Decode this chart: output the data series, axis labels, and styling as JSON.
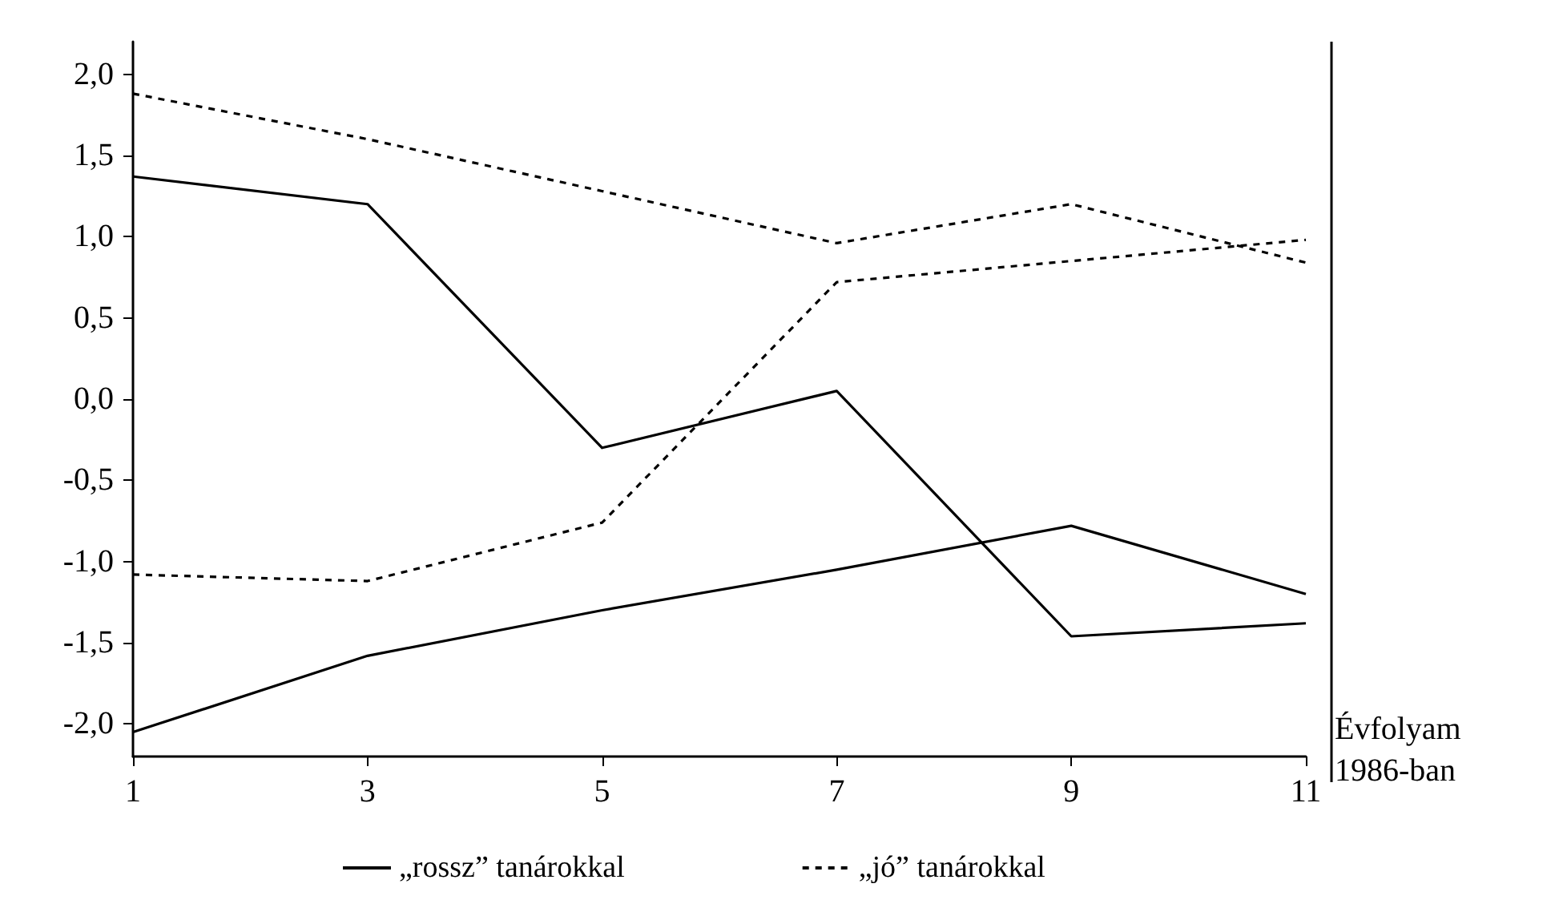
{
  "chart_data": {
    "type": "line",
    "xlabel": "Évfolyam 1986-ban",
    "x": [
      1,
      3,
      5,
      7,
      9,
      11
    ],
    "xlim": [
      1,
      11
    ],
    "xticks": [
      1,
      3,
      5,
      7,
      9,
      11
    ],
    "ylim": [
      -2.2,
      2.2
    ],
    "yticks": [
      {
        "value": -2,
        "label": "-2,0"
      },
      {
        "value": -1.5,
        "label": "-1,5"
      },
      {
        "value": -1,
        "label": "-1,0"
      },
      {
        "value": -0.5,
        "label": "-0,5"
      },
      {
        "value": 0,
        "label": "0,0"
      },
      {
        "value": 0.5,
        "label": "0,5"
      },
      {
        "value": 1,
        "label": "1,0"
      },
      {
        "value": 1.5,
        "label": "1,5"
      },
      {
        "value": 2,
        "label": "2,0"
      }
    ],
    "grid": false,
    "legend": "bottom",
    "marker": "none",
    "series": [
      {
        "name": "„rossz” tanárokkal",
        "color": "#000000",
        "line_style": "solid",
        "values": [
          1.37,
          1.2,
          -0.3,
          0.05,
          -1.46,
          -1.38
        ]
      },
      {
        "color": "#000000",
        "line_style": "solid",
        "values": [
          -2.05,
          -1.58,
          -1.3,
          -1.05,
          -0.78,
          -1.2
        ]
      },
      {
        "name": "„jó” tanárokkal",
        "color": "#000000",
        "line_style": "dashed",
        "values": [
          1.88,
          1.6,
          1.28,
          0.96,
          1.2,
          0.84
        ]
      },
      {
        "color": "#000000",
        "line_style": "dashed",
        "values": [
          -1.08,
          -1.12,
          -0.76,
          0.72,
          0.85,
          0.98
        ]
      }
    ]
  }
}
